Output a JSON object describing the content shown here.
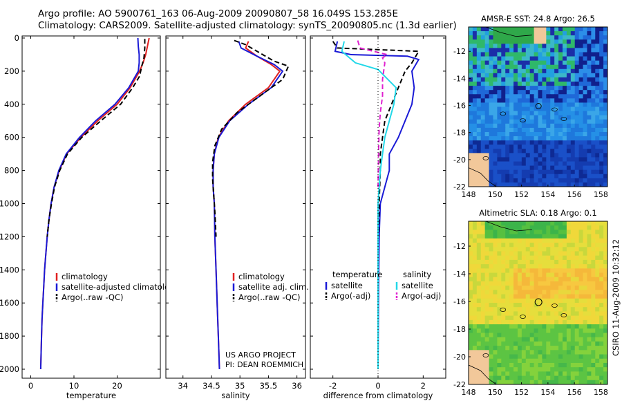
{
  "header": {
    "line1": "Argo profile: AO 5900761_163 06-Aug-2009 20090807_58 16.049S 153.285E",
    "line2": "Climatology: CARS2009. Satellite-adjusted climatology: synTS_20090805.nc (1.3d earlier)"
  },
  "footer": {
    "project": "US ARGO PROJECT",
    "pi": "PI: DEAN ROEMMICH",
    "credit": "CSIRO 11-Aug-2009 10:32:12"
  },
  "colors": {
    "climatology": "#e02020",
    "satellite": "#1a1ad6",
    "argo": "#000000",
    "satellite_salinity": "#22d8e8",
    "argo_salinity": "#e020d0"
  },
  "chart_data": [
    {
      "id": "temperature",
      "type": "line",
      "xlabel": "temperature",
      "ylabel": "",
      "xlim": [
        -2,
        30
      ],
      "ylim": [
        2050,
        0
      ],
      "xticks": [
        0,
        10,
        20
      ],
      "yticks": [
        0,
        200,
        400,
        600,
        800,
        1000,
        1200,
        1400,
        1600,
        1800,
        2000
      ],
      "legend": [
        "climatology",
        "satellite-adjusted climatology",
        "Argo(..raw -QC)"
      ],
      "series": [
        {
          "name": "climatology",
          "style": "solid",
          "color": "#e02020",
          "points": [
            [
              27.4,
              0
            ],
            [
              27.0,
              50
            ],
            [
              26.6,
              100
            ],
            [
              26.0,
              150
            ],
            [
              25.2,
              200
            ],
            [
              23.0,
              300
            ],
            [
              20.0,
              400
            ],
            [
              15.5,
              500
            ],
            [
              11.6,
              600
            ],
            [
              8.3,
              700
            ],
            [
              6.6,
              800
            ],
            [
              5.4,
              900
            ],
            [
              4.7,
              1000
            ],
            [
              4.2,
              1100
            ],
            [
              3.8,
              1200
            ],
            [
              3.5,
              1300
            ],
            [
              3.2,
              1400
            ],
            [
              3.0,
              1500
            ],
            [
              2.8,
              1600
            ],
            [
              2.6,
              1700
            ],
            [
              2.5,
              1800
            ],
            [
              2.4,
              1900
            ],
            [
              2.3,
              2000
            ]
          ]
        },
        {
          "name": "satellite-adjusted climatology",
          "style": "solid",
          "color": "#1a1ad6",
          "points": [
            [
              24.8,
              0
            ],
            [
              24.9,
              50
            ],
            [
              25.1,
              100
            ],
            [
              25.1,
              150
            ],
            [
              24.9,
              200
            ],
            [
              22.7,
              300
            ],
            [
              19.5,
              400
            ],
            [
              15.0,
              500
            ],
            [
              11.3,
              600
            ],
            [
              8.2,
              700
            ],
            [
              6.5,
              800
            ],
            [
              5.4,
              900
            ],
            [
              4.7,
              1000
            ],
            [
              4.2,
              1100
            ],
            [
              3.8,
              1200
            ],
            [
              3.5,
              1300
            ],
            [
              3.2,
              1400
            ],
            [
              3.0,
              1500
            ],
            [
              2.8,
              1600
            ],
            [
              2.6,
              1700
            ],
            [
              2.5,
              1800
            ],
            [
              2.4,
              1900
            ],
            [
              2.3,
              2000
            ]
          ]
        },
        {
          "name": "Argo(..raw -QC)",
          "style": "dashed",
          "color": "#000000",
          "points": [
            [
              26.4,
              5
            ],
            [
              26.4,
              60
            ],
            [
              26.2,
              120
            ],
            [
              25.7,
              170
            ],
            [
              25.2,
              230
            ],
            [
              23.6,
              300
            ],
            [
              20.8,
              400
            ],
            [
              16.2,
              500
            ],
            [
              11.8,
              600
            ],
            [
              8.5,
              700
            ],
            [
              6.7,
              800
            ],
            [
              5.5,
              900
            ],
            [
              4.8,
              1000
            ],
            [
              4.2,
              1100
            ],
            [
              3.8,
              1200
            ]
          ]
        }
      ]
    },
    {
      "id": "salinity",
      "type": "line",
      "xlabel": "salinity",
      "ylabel": "",
      "xlim": [
        33.7,
        36.15
      ],
      "ylim": [
        2050,
        0
      ],
      "xticks": [
        34,
        34.5,
        35,
        35.5,
        36
      ],
      "legend": [
        "climatology",
        "satellite adj. clim.",
        "Argo(..raw -QC)"
      ],
      "series": [
        {
          "name": "climatology",
          "style": "solid",
          "color": "#e02020",
          "points": [
            [
              35.15,
              20
            ],
            [
              35.1,
              60
            ],
            [
              35.3,
              110
            ],
            [
              35.55,
              160
            ],
            [
              35.7,
              200
            ],
            [
              35.5,
              300
            ],
            [
              35.1,
              400
            ],
            [
              34.8,
              500
            ],
            [
              34.62,
              600
            ],
            [
              34.55,
              700
            ],
            [
              34.53,
              800
            ],
            [
              34.53,
              900
            ],
            [
              34.55,
              1000
            ],
            [
              34.56,
              1200
            ],
            [
              34.58,
              1400
            ],
            [
              34.6,
              1600
            ],
            [
              34.62,
              1800
            ],
            [
              34.64,
              2000
            ]
          ]
        },
        {
          "name": "satellite adj. clim.",
          "style": "solid",
          "color": "#1a1ad6",
          "points": [
            [
              34.98,
              20
            ],
            [
              35.02,
              60
            ],
            [
              35.3,
              110
            ],
            [
              35.6,
              160
            ],
            [
              35.75,
              200
            ],
            [
              35.55,
              300
            ],
            [
              35.15,
              400
            ],
            [
              34.82,
              500
            ],
            [
              34.63,
              600
            ],
            [
              34.55,
              700
            ],
            [
              34.53,
              800
            ],
            [
              34.53,
              900
            ],
            [
              34.55,
              1000
            ],
            [
              34.56,
              1200
            ],
            [
              34.58,
              1400
            ],
            [
              34.6,
              1600
            ],
            [
              34.62,
              1800
            ],
            [
              34.64,
              2000
            ]
          ]
        },
        {
          "name": "Argo(..raw -QC)",
          "style": "dashed",
          "color": "#000000",
          "points": [
            [
              34.9,
              15
            ],
            [
              35.1,
              40
            ],
            [
              35.35,
              90
            ],
            [
              35.6,
              140
            ],
            [
              35.85,
              170
            ],
            [
              35.75,
              250
            ],
            [
              35.35,
              350
            ],
            [
              34.95,
              450
            ],
            [
              34.68,
              550
            ],
            [
              34.56,
              650
            ],
            [
              34.52,
              750
            ],
            [
              34.52,
              850
            ],
            [
              34.54,
              950
            ],
            [
              34.56,
              1050
            ],
            [
              34.58,
              1200
            ]
          ]
        }
      ]
    },
    {
      "id": "difference",
      "type": "line",
      "xlabel": "difference from climatology",
      "ylabel": "",
      "xlim": [
        -3,
        3
      ],
      "ylim": [
        2050,
        0
      ],
      "xticks": [
        -2,
        0,
        2
      ],
      "legend_title_left": "temperature",
      "legend_title_right": "salinity",
      "legend_left": [
        "satellite",
        "Argo(-adj)"
      ],
      "legend_right": [
        "satellite",
        "Argo(-adj)"
      ],
      "series": [
        {
          "name": "temperature satellite",
          "style": "solid",
          "color": "#1a1ad6",
          "points": [
            [
              -1.8,
              20
            ],
            [
              -1.9,
              80
            ],
            [
              -1.2,
              100
            ],
            [
              1.3,
              110
            ],
            [
              1.8,
              130
            ],
            [
              1.5,
              200
            ],
            [
              1.6,
              300
            ],
            [
              1.5,
              400
            ],
            [
              1.2,
              500
            ],
            [
              0.9,
              600
            ],
            [
              0.5,
              700
            ],
            [
              0.5,
              800
            ],
            [
              0.3,
              900
            ],
            [
              0.1,
              1000
            ],
            [
              0.05,
              1200
            ],
            [
              0.02,
              1500
            ],
            [
              0.0,
              2000
            ]
          ]
        },
        {
          "name": "temperature Argo(-adj)",
          "style": "dashed",
          "color": "#000000",
          "points": [
            [
              -2.0,
              20
            ],
            [
              -1.8,
              60
            ],
            [
              1.8,
              80
            ],
            [
              1.5,
              150
            ],
            [
              1.2,
              200
            ],
            [
              0.9,
              300
            ],
            [
              0.6,
              400
            ],
            [
              0.3,
              500
            ],
            [
              0.2,
              600
            ],
            [
              0.1,
              700
            ],
            [
              0.1,
              800
            ],
            [
              0.05,
              1000
            ],
            [
              0.02,
              1200
            ]
          ]
        },
        {
          "name": "salinity satellite",
          "style": "solid",
          "color": "#22d8e8",
          "points": [
            [
              -1.5,
              20
            ],
            [
              -1.6,
              80
            ],
            [
              -1.0,
              150
            ],
            [
              0.0,
              190
            ],
            [
              0.8,
              300
            ],
            [
              0.7,
              400
            ],
            [
              0.5,
              500
            ],
            [
              0.3,
              600
            ],
            [
              0.2,
              700
            ],
            [
              0.1,
              800
            ],
            [
              0.05,
              900
            ],
            [
              0.0,
              1000
            ],
            [
              0.0,
              2000
            ]
          ]
        },
        {
          "name": "salinity Argo(-adj)",
          "style": "dashed",
          "color": "#e020d0",
          "points": [
            [
              -0.9,
              15
            ],
            [
              -0.8,
              60
            ],
            [
              0.4,
              100
            ],
            [
              0.2,
              120
            ],
            [
              0.3,
              150
            ],
            [
              0.2,
              250
            ],
            [
              0.2,
              350
            ],
            [
              0.1,
              450
            ],
            [
              0.05,
              550
            ],
            [
              0.02,
              700
            ],
            [
              0.0,
              900
            ]
          ]
        }
      ]
    },
    {
      "id": "amsre_sst",
      "type": "heatmap",
      "title": "AMSR-E SST: 24.8 Argo: 26.5",
      "xlim": [
        148,
        158.5
      ],
      "ylim": [
        -22,
        -10.2
      ],
      "xticks": [
        148,
        150,
        152,
        154,
        156,
        158
      ],
      "yticks": [
        -12,
        -14,
        -16,
        -18,
        -20,
        -22
      ]
    },
    {
      "id": "altimetric_sla",
      "type": "heatmap",
      "title": "Altimetric SLA: 0.18 Argo: 0.1",
      "xlim": [
        148,
        158.5
      ],
      "ylim": [
        -22,
        -10.2
      ],
      "xticks": [
        148,
        150,
        152,
        154,
        156,
        158
      ],
      "yticks": [
        -12,
        -14,
        -16,
        -18,
        -20,
        -22
      ]
    }
  ]
}
